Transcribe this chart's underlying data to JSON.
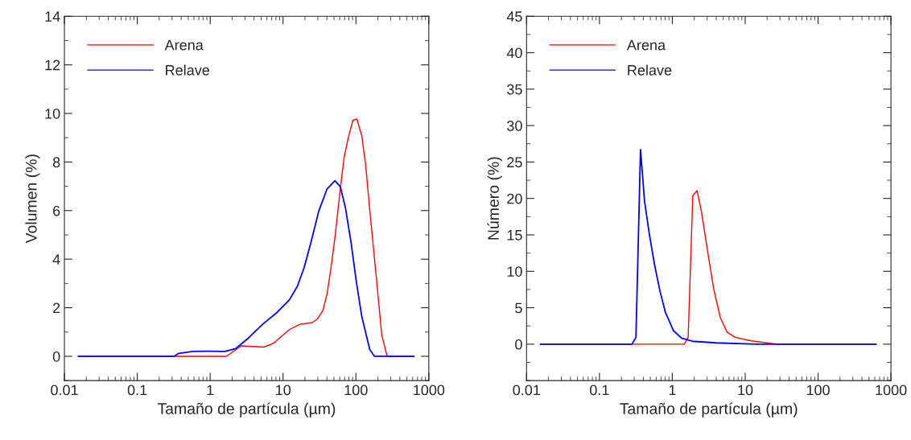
{
  "chart_data": [
    {
      "type": "line",
      "xlabel": "Tamaño de partícula (µm)",
      "ylabel": "Volumen (%)",
      "log": "x",
      "xlim": [
        0.01,
        1000
      ],
      "xticks": [
        0.01,
        0.1,
        1,
        10,
        100,
        1000
      ],
      "ylim": [
        -1,
        14
      ],
      "yticks": [
        0,
        2,
        4,
        6,
        8,
        10,
        12,
        14
      ],
      "legend": "top left",
      "grid": false,
      "series": [
        {
          "name": "Arena",
          "color": "#ff0000",
          "x": [
            0.0155,
            1.67,
            2.67,
            5.5,
            7.4,
            12.2,
            17.1,
            25,
            29.7,
            35.2,
            40,
            45,
            51.5,
            61,
            69,
            78.5,
            90.8,
            103,
            120,
            136,
            155,
            191,
            226,
            268,
            625
          ],
          "values": [
            0,
            0,
            0.43,
            0.38,
            0.54,
            1.1,
            1.32,
            1.38,
            1.54,
            1.88,
            2.54,
            3.54,
            4.88,
            6.88,
            8.2,
            8.99,
            9.71,
            9.77,
            9.1,
            7.88,
            6.0,
            3.21,
            0.88,
            0,
            0
          ]
        },
        {
          "name": "Relave",
          "color": "#0000ff",
          "x": [
            0.0155,
            0.32,
            0.37,
            0.58,
            0.96,
            1.6,
            2.25,
            3.4,
            5.25,
            8,
            12.2,
            15.7,
            19.5,
            24,
            31,
            40,
            51.5,
            61,
            72,
            86,
            101,
            120,
            155,
            180,
            625
          ],
          "values": [
            0,
            0,
            0.12,
            0.2,
            0.21,
            0.2,
            0.32,
            0.77,
            1.32,
            1.77,
            2.32,
            2.88,
            3.66,
            4.66,
            5.99,
            6.88,
            7.23,
            6.99,
            6.1,
            4.66,
            3.1,
            1.66,
            0.27,
            0,
            0
          ]
        }
      ]
    },
    {
      "type": "line",
      "xlabel": "Tamaño de partícula (µm)",
      "ylabel": "Número (%)",
      "log": "x",
      "xlim": [
        0.01,
        1000
      ],
      "xticks": [
        0.01,
        0.1,
        1,
        10,
        100,
        1000
      ],
      "ylim": [
        -5,
        45
      ],
      "yticks": [
        0,
        5,
        10,
        15,
        20,
        25,
        30,
        35,
        40,
        45
      ],
      "legend": "top left",
      "grid": false,
      "series": [
        {
          "name": "Arena",
          "color": "#ff0000",
          "x": [
            0.0155,
            1.46,
            1.65,
            1.91,
            2.19,
            2.53,
            2.99,
            3.7,
            4.57,
            5.65,
            7.28,
            12.1,
            28,
            625
          ],
          "values": [
            0,
            0,
            0.94,
            20.35,
            21.07,
            18.0,
            13.3,
            7.55,
            3.6,
            1.65,
            0.94,
            0.46,
            0,
            0
          ]
        },
        {
          "name": "Relave",
          "color": "#0000ff",
          "x": [
            0.0155,
            0.28,
            0.317,
            0.366,
            0.416,
            0.484,
            0.573,
            0.68,
            0.805,
            1.04,
            1.34,
            1.88,
            4.0,
            14.4,
            625
          ],
          "values": [
            0,
            0,
            0.94,
            26.7,
            19.6,
            15.1,
            10.8,
            7.2,
            4.35,
            1.83,
            0.83,
            0.4,
            0.18,
            0,
            0
          ]
        }
      ]
    }
  ]
}
